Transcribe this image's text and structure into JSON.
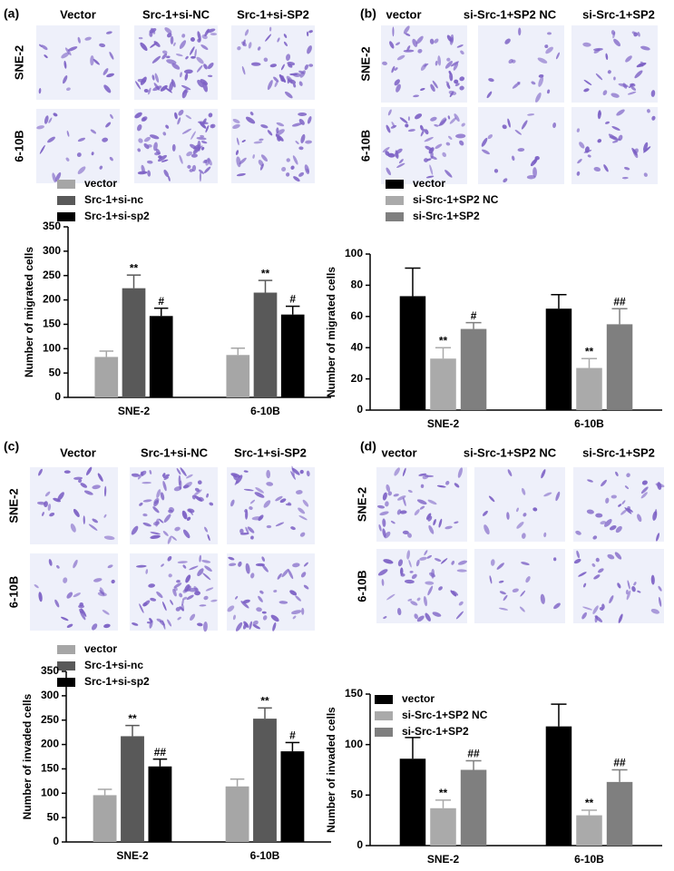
{
  "chart_data": [
    {
      "type": "bar",
      "panel_label": "(a)",
      "image_columns": [
        "Vector",
        "Src-1+si-NC",
        "Src-1+si-SP2"
      ],
      "image_rows": [
        "SNE-2",
        "6-10B"
      ],
      "ylabel": "Number of migrated cells",
      "categories": [
        "SNE-2",
        "6-10B"
      ],
      "series": [
        {
          "name": "vector",
          "color": "#a6a6a6",
          "values": [
            83,
            87
          ],
          "errors": [
            12,
            14
          ]
        },
        {
          "name": "Src-1+si-nc",
          "color": "#595959",
          "values": [
            224,
            215
          ],
          "errors": [
            27,
            25
          ],
          "labels": [
            "**",
            "**"
          ]
        },
        {
          "name": "Src-1+si-sp2",
          "color": "#000000",
          "values": [
            167,
            170
          ],
          "errors": [
            16,
            17
          ],
          "labels": [
            "#",
            "#"
          ]
        }
      ],
      "ylim": [
        0,
        350
      ],
      "yticks": [
        0,
        50,
        100,
        150,
        200,
        250,
        300,
        350
      ],
      "legend": "upper left"
    },
    {
      "type": "bar",
      "panel_label": "(b)",
      "image_columns": [
        "vector",
        "si-Src-1+SP2 NC",
        "si-Src-1+SP2"
      ],
      "image_rows": [
        "SNE-2",
        "6-10B"
      ],
      "ylabel": "Number of migrated cells",
      "categories": [
        "SNE-2",
        "6-10B"
      ],
      "series": [
        {
          "name": "vector",
          "color": "#000000",
          "values": [
            73,
            65
          ],
          "errors": [
            18,
            9
          ]
        },
        {
          "name": "si-Src-1+SP2 NC",
          "color": "#aaaaaa",
          "values": [
            33,
            27
          ],
          "errors": [
            7,
            6
          ],
          "labels": [
            "**",
            "**"
          ]
        },
        {
          "name": "si-Src-1+SP2",
          "color": "#7f7f7f",
          "values": [
            52,
            55
          ],
          "errors": [
            4,
            10
          ],
          "labels": [
            "#",
            "##"
          ]
        }
      ],
      "ylim": [
        0,
        100
      ],
      "yticks": [
        0,
        20,
        40,
        60,
        80,
        100
      ],
      "legend": "upper left"
    },
    {
      "type": "bar",
      "panel_label": "(c)",
      "image_columns": [
        "Vector",
        "Src-1+si-NC",
        "Src-1+si-SP2"
      ],
      "image_rows": [
        "SNE-2",
        "6-10B"
      ],
      "ylabel": "Number of invaded cells",
      "categories": [
        "SNE-2",
        "6-10B"
      ],
      "series": [
        {
          "name": "vector",
          "color": "#a6a6a6",
          "values": [
            96,
            114
          ],
          "errors": [
            12,
            15
          ]
        },
        {
          "name": "Src-1+si-nc",
          "color": "#595959",
          "values": [
            217,
            253
          ],
          "errors": [
            22,
            22
          ],
          "labels": [
            "**",
            "**"
          ]
        },
        {
          "name": "Src-1+si-sp2",
          "color": "#000000",
          "values": [
            155,
            186
          ],
          "errors": [
            15,
            18
          ],
          "labels": [
            "##",
            "#"
          ]
        }
      ],
      "ylim": [
        0,
        350
      ],
      "yticks": [
        0,
        50,
        100,
        150,
        200,
        250,
        300,
        350
      ],
      "legend": "upper left"
    },
    {
      "type": "bar",
      "panel_label": "(d)",
      "image_columns": [
        "vector",
        "si-Src-1+SP2 NC",
        "si-Src-1+SP2"
      ],
      "image_rows": [
        "SNE-2",
        "6-10B"
      ],
      "ylabel": "Number of invaded cells",
      "categories": [
        "SNE-2",
        "6-10B"
      ],
      "series": [
        {
          "name": "vector",
          "color": "#000000",
          "values": [
            86,
            118
          ],
          "errors": [
            21,
            22
          ]
        },
        {
          "name": "si-Src-1+SP2 NC",
          "color": "#aaaaaa",
          "values": [
            37,
            30
          ],
          "errors": [
            8,
            5
          ],
          "labels": [
            "**",
            "**"
          ]
        },
        {
          "name": "si-Src-1+SP2",
          "color": "#7f7f7f",
          "values": [
            75,
            63
          ],
          "errors": [
            9,
            12
          ],
          "labels": [
            "##",
            "##"
          ]
        }
      ],
      "ylim": [
        0,
        150
      ],
      "yticks": [
        0,
        50,
        100,
        150
      ],
      "legend": "upper left"
    }
  ]
}
